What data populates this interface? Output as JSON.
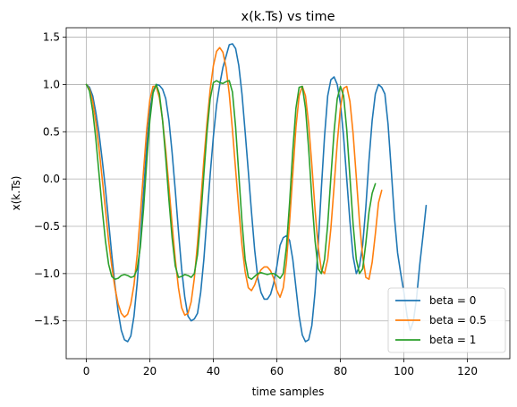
{
  "chart_data": {
    "type": "line",
    "title": "x(k.Ts) vs time",
    "xlabel": "time samples",
    "ylabel": "x(k.Ts)",
    "xlim": [
      -6.35,
      133.35
    ],
    "ylim": [
      -1.9,
      1.6
    ],
    "xticks": [
      0,
      20,
      40,
      60,
      80,
      100,
      120
    ],
    "yticks": [
      -1.5,
      -1.0,
      -0.5,
      0.0,
      0.5,
      1.0,
      1.5
    ],
    "xtick_labels": [
      "0",
      "20",
      "40",
      "60",
      "80",
      "100",
      "120"
    ],
    "ytick_labels": [
      "−1.5",
      "−1.0",
      "−0.5",
      "0.0",
      "0.5",
      "1.0",
      "1.5"
    ],
    "grid": true,
    "legend_position": "lower-right",
    "series": [
      {
        "name": "beta = 0",
        "color": "#1f77b4",
        "points": [
          [
            0,
            1.0
          ],
          [
            1,
            0.97
          ],
          [
            2,
            0.88
          ],
          [
            3,
            0.7
          ],
          [
            4,
            0.48
          ],
          [
            5,
            0.2
          ],
          [
            6,
            -0.1
          ],
          [
            7,
            -0.45
          ],
          [
            8,
            -0.8
          ],
          [
            9,
            -1.12
          ],
          [
            10,
            -1.4
          ],
          [
            11,
            -1.6
          ],
          [
            12,
            -1.7
          ],
          [
            13,
            -1.72
          ],
          [
            14,
            -1.66
          ],
          [
            15,
            -1.45
          ],
          [
            16,
            -1.1
          ],
          [
            17,
            -0.65
          ],
          [
            18,
            -0.15
          ],
          [
            19,
            0.35
          ],
          [
            20,
            0.72
          ],
          [
            21,
            0.93
          ],
          [
            22,
            1.0
          ],
          [
            23,
            0.99
          ],
          [
            24,
            0.95
          ],
          [
            25,
            0.85
          ],
          [
            26,
            0.62
          ],
          [
            27,
            0.28
          ],
          [
            28,
            -0.12
          ],
          [
            29,
            -0.55
          ],
          [
            30,
            -0.95
          ],
          [
            31,
            -1.25
          ],
          [
            32,
            -1.45
          ],
          [
            33,
            -1.5
          ],
          [
            34,
            -1.48
          ],
          [
            35,
            -1.42
          ],
          [
            36,
            -1.2
          ],
          [
            37,
            -0.85
          ],
          [
            38,
            -0.4
          ],
          [
            39,
            0.05
          ],
          [
            40,
            0.45
          ],
          [
            41,
            0.78
          ],
          [
            42,
            1.0
          ],
          [
            43,
            1.18
          ],
          [
            44,
            1.3
          ],
          [
            45,
            1.42
          ],
          [
            46,
            1.43
          ],
          [
            47,
            1.38
          ],
          [
            48,
            1.2
          ],
          [
            49,
            0.9
          ],
          [
            50,
            0.5
          ],
          [
            51,
            0.08
          ],
          [
            52,
            -0.35
          ],
          [
            53,
            -0.75
          ],
          [
            54,
            -1.05
          ],
          [
            55,
            -1.2
          ],
          [
            56,
            -1.27
          ],
          [
            57,
            -1.27
          ],
          [
            58,
            -1.22
          ],
          [
            59,
            -1.1
          ],
          [
            60,
            -0.92
          ],
          [
            61,
            -0.7
          ],
          [
            62,
            -0.62
          ],
          [
            63,
            -0.6
          ],
          [
            64,
            -0.65
          ],
          [
            65,
            -0.85
          ],
          [
            66,
            -1.15
          ],
          [
            67,
            -1.45
          ],
          [
            68,
            -1.65
          ],
          [
            69,
            -1.72
          ],
          [
            70,
            -1.7
          ],
          [
            71,
            -1.55
          ],
          [
            72,
            -1.2
          ],
          [
            73,
            -0.7
          ],
          [
            74,
            -0.1
          ],
          [
            75,
            0.45
          ],
          [
            76,
            0.88
          ],
          [
            77,
            1.05
          ],
          [
            78,
            1.08
          ],
          [
            79,
            1.0
          ],
          [
            80,
            0.8
          ],
          [
            81,
            0.45
          ],
          [
            82,
            0.0
          ],
          [
            83,
            -0.45
          ],
          [
            84,
            -0.82
          ],
          [
            85,
            -1.0
          ],
          [
            86,
            -0.92
          ],
          [
            87,
            -0.7
          ],
          [
            88,
            -0.3
          ],
          [
            89,
            0.2
          ],
          [
            90,
            0.62
          ],
          [
            91,
            0.9
          ],
          [
            92,
            1.0
          ],
          [
            93,
            0.97
          ],
          [
            94,
            0.9
          ],
          [
            95,
            0.58
          ],
          [
            96,
            0.1
          ],
          [
            97,
            -0.4
          ],
          [
            98,
            -0.78
          ],
          [
            99,
            -1.0
          ],
          [
            100,
            -1.2
          ],
          [
            101,
            -1.45
          ],
          [
            102,
            -1.6
          ],
          [
            103,
            -1.5
          ],
          [
            104,
            -1.25
          ],
          [
            105,
            -0.9
          ],
          [
            106,
            -0.6
          ],
          [
            107,
            -0.28
          ]
        ]
      },
      {
        "name": "beta = 0.5",
        "color": "#ff7f0e",
        "points": [
          [
            0,
            1.0
          ],
          [
            1,
            0.95
          ],
          [
            2,
            0.82
          ],
          [
            3,
            0.6
          ],
          [
            4,
            0.32
          ],
          [
            5,
            0.0
          ],
          [
            6,
            -0.32
          ],
          [
            7,
            -0.65
          ],
          [
            8,
            -0.92
          ],
          [
            9,
            -1.15
          ],
          [
            10,
            -1.32
          ],
          [
            11,
            -1.42
          ],
          [
            12,
            -1.46
          ],
          [
            13,
            -1.43
          ],
          [
            14,
            -1.32
          ],
          [
            15,
            -1.12
          ],
          [
            16,
            -0.8
          ],
          [
            17,
            -0.38
          ],
          [
            18,
            0.08
          ],
          [
            19,
            0.52
          ],
          [
            20,
            0.84
          ],
          [
            21,
            0.98
          ],
          [
            22,
            0.98
          ],
          [
            23,
            0.86
          ],
          [
            24,
            0.62
          ],
          [
            25,
            0.3
          ],
          [
            26,
            -0.08
          ],
          [
            27,
            -0.48
          ],
          [
            28,
            -0.85
          ],
          [
            29,
            -1.15
          ],
          [
            30,
            -1.36
          ],
          [
            31,
            -1.44
          ],
          [
            32,
            -1.42
          ],
          [
            33,
            -1.3
          ],
          [
            34,
            -1.05
          ],
          [
            35,
            -0.68
          ],
          [
            36,
            -0.25
          ],
          [
            37,
            0.2
          ],
          [
            38,
            0.6
          ],
          [
            39,
            0.95
          ],
          [
            40,
            1.2
          ],
          [
            41,
            1.35
          ],
          [
            42,
            1.39
          ],
          [
            43,
            1.34
          ],
          [
            44,
            1.18
          ],
          [
            45,
            0.9
          ],
          [
            46,
            0.52
          ],
          [
            47,
            0.1
          ],
          [
            48,
            -0.32
          ],
          [
            49,
            -0.7
          ],
          [
            50,
            -0.98
          ],
          [
            51,
            -1.15
          ],
          [
            52,
            -1.18
          ],
          [
            53,
            -1.12
          ],
          [
            54,
            -1.02
          ],
          [
            55,
            -0.96
          ],
          [
            56,
            -0.93
          ],
          [
            57,
            -0.93
          ],
          [
            58,
            -0.97
          ],
          [
            59,
            -1.05
          ],
          [
            60,
            -1.18
          ],
          [
            61,
            -1.25
          ],
          [
            62,
            -1.15
          ],
          [
            63,
            -0.88
          ],
          [
            64,
            -0.45
          ],
          [
            65,
            0.05
          ],
          [
            66,
            0.55
          ],
          [
            67,
            0.88
          ],
          [
            68,
            0.98
          ],
          [
            69,
            0.88
          ],
          [
            70,
            0.58
          ],
          [
            71,
            0.15
          ],
          [
            72,
            -0.32
          ],
          [
            73,
            -0.72
          ],
          [
            74,
            -0.96
          ],
          [
            75,
            -1.0
          ],
          [
            76,
            -0.85
          ],
          [
            77,
            -0.52
          ],
          [
            78,
            -0.08
          ],
          [
            79,
            0.38
          ],
          [
            80,
            0.75
          ],
          [
            81,
            0.96
          ],
          [
            82,
            0.98
          ],
          [
            83,
            0.82
          ],
          [
            84,
            0.48
          ],
          [
            85,
            0.02
          ],
          [
            86,
            -0.45
          ],
          [
            87,
            -0.82
          ],
          [
            88,
            -1.04
          ],
          [
            89,
            -1.06
          ],
          [
            90,
            -0.88
          ],
          [
            91,
            -0.58
          ],
          [
            92,
            -0.25
          ],
          [
            93,
            -0.12
          ]
        ]
      },
      {
        "name": "beta = 1",
        "color": "#2ca02c",
        "points": [
          [
            0,
            1.0
          ],
          [
            1,
            0.93
          ],
          [
            2,
            0.72
          ],
          [
            3,
            0.42
          ],
          [
            4,
            0.05
          ],
          [
            5,
            -0.32
          ],
          [
            6,
            -0.65
          ],
          [
            7,
            -0.9
          ],
          [
            8,
            -1.03
          ],
          [
            9,
            -1.06
          ],
          [
            10,
            -1.05
          ],
          [
            11,
            -1.02
          ],
          [
            12,
            -1.01
          ],
          [
            13,
            -1.02
          ],
          [
            14,
            -1.04
          ],
          [
            15,
            -1.03
          ],
          [
            16,
            -0.95
          ],
          [
            17,
            -0.72
          ],
          [
            18,
            -0.32
          ],
          [
            19,
            0.18
          ],
          [
            20,
            0.62
          ],
          [
            21,
            0.91
          ],
          [
            22,
            1.0
          ],
          [
            23,
            0.9
          ],
          [
            24,
            0.62
          ],
          [
            25,
            0.22
          ],
          [
            26,
            -0.22
          ],
          [
            27,
            -0.62
          ],
          [
            28,
            -0.92
          ],
          [
            29,
            -1.04
          ],
          [
            30,
            -1.03
          ],
          [
            31,
            -1.01
          ],
          [
            32,
            -1.02
          ],
          [
            33,
            -1.04
          ],
          [
            34,
            -1.0
          ],
          [
            35,
            -0.8
          ],
          [
            36,
            -0.42
          ],
          [
            37,
            0.05
          ],
          [
            38,
            0.5
          ],
          [
            39,
            0.85
          ],
          [
            40,
            1.02
          ],
          [
            41,
            1.04
          ],
          [
            42,
            1.02
          ],
          [
            43,
            1.01
          ],
          [
            44,
            1.03
          ],
          [
            45,
            1.04
          ],
          [
            46,
            0.92
          ],
          [
            47,
            0.55
          ],
          [
            48,
            0.05
          ],
          [
            49,
            -0.45
          ],
          [
            50,
            -0.85
          ],
          [
            51,
            -1.04
          ],
          [
            52,
            -1.06
          ],
          [
            53,
            -1.03
          ],
          [
            54,
            -1.0
          ],
          [
            55,
            -0.99
          ],
          [
            56,
            -1.0
          ],
          [
            57,
            -1.01
          ],
          [
            58,
            -1.0
          ],
          [
            59,
            -1.0
          ],
          [
            60,
            -1.02
          ],
          [
            61,
            -1.05
          ],
          [
            62,
            -1.0
          ],
          [
            63,
            -0.72
          ],
          [
            64,
            -0.25
          ],
          [
            65,
            0.3
          ],
          [
            66,
            0.75
          ],
          [
            67,
            0.97
          ],
          [
            68,
            0.98
          ],
          [
            69,
            0.75
          ],
          [
            70,
            0.32
          ],
          [
            71,
            -0.2
          ],
          [
            72,
            -0.65
          ],
          [
            73,
            -0.95
          ],
          [
            74,
            -1.0
          ],
          [
            75,
            -0.85
          ],
          [
            76,
            -0.48
          ],
          [
            77,
            0.02
          ],
          [
            78,
            0.5
          ],
          [
            79,
            0.85
          ],
          [
            80,
            0.98
          ],
          [
            81,
            0.88
          ],
          [
            82,
            0.52
          ],
          [
            83,
            0.02
          ],
          [
            84,
            -0.48
          ],
          [
            85,
            -0.85
          ],
          [
            86,
            -1.0
          ],
          [
            87,
            -0.95
          ],
          [
            88,
            -0.68
          ],
          [
            89,
            -0.35
          ],
          [
            90,
            -0.15
          ],
          [
            91,
            -0.05
          ]
        ]
      }
    ]
  }
}
